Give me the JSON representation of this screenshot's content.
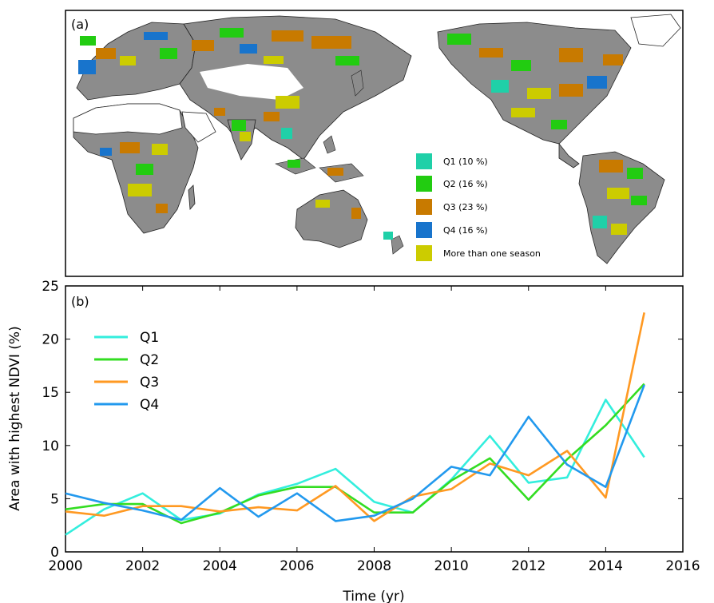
{
  "map_panel": {
    "label": "(a)",
    "legend": [
      {
        "label": "Q1 (10 %)",
        "color": "#1fd0a8"
      },
      {
        "label": "Q2 (16 %)",
        "color": "#22cc11"
      },
      {
        "label": "Q3 (23 %)",
        "color": "#c87a00"
      },
      {
        "label": "Q4 (16 %)",
        "color": "#1874cc"
      },
      {
        "label": "More than one season",
        "color": "#cccc00"
      }
    ],
    "land_color": "#8c8c8c"
  },
  "chart_data": {
    "type": "line",
    "panel_label": "(b)",
    "xlabel": "Time (yr)",
    "ylabel": "Area with highest NDVI (%)",
    "xlim": [
      2000,
      2016
    ],
    "ylim": [
      0,
      25
    ],
    "xticks": [
      2000,
      2002,
      2004,
      2006,
      2008,
      2010,
      2012,
      2014,
      2016
    ],
    "yticks": [
      0,
      5,
      10,
      15,
      20,
      25
    ],
    "x": [
      2000,
      2001,
      2002,
      2003,
      2004,
      2005,
      2006,
      2007,
      2008,
      2009,
      2010,
      2011,
      2012,
      2013,
      2014,
      2015
    ],
    "legend_position": "upper-left",
    "grid": false,
    "series": [
      {
        "name": "Q1",
        "color": "#33eedd",
        "values": [
          1.6,
          4.0,
          5.5,
          3.0,
          3.6,
          5.4,
          6.4,
          7.8,
          4.7,
          3.7,
          6.8,
          10.9,
          6.5,
          7.0,
          14.3,
          8.9
        ]
      },
      {
        "name": "Q2",
        "color": "#33dd22",
        "values": [
          4.0,
          4.5,
          4.5,
          2.7,
          3.7,
          5.3,
          6.1,
          6.1,
          3.7,
          3.7,
          6.7,
          8.8,
          4.9,
          8.7,
          11.9,
          15.8
        ]
      },
      {
        "name": "Q3",
        "color": "#ff9922",
        "values": [
          3.8,
          3.4,
          4.3,
          4.3,
          3.8,
          4.2,
          3.9,
          6.2,
          2.9,
          5.2,
          5.9,
          8.3,
          7.2,
          9.5,
          5.1,
          22.5
        ]
      },
      {
        "name": "Q4",
        "color": "#2299ee",
        "values": [
          5.5,
          4.6,
          3.9,
          3.0,
          6.0,
          3.3,
          5.5,
          2.9,
          3.4,
          5.0,
          8.0,
          7.2,
          12.7,
          8.2,
          6.1,
          15.7
        ]
      }
    ]
  }
}
